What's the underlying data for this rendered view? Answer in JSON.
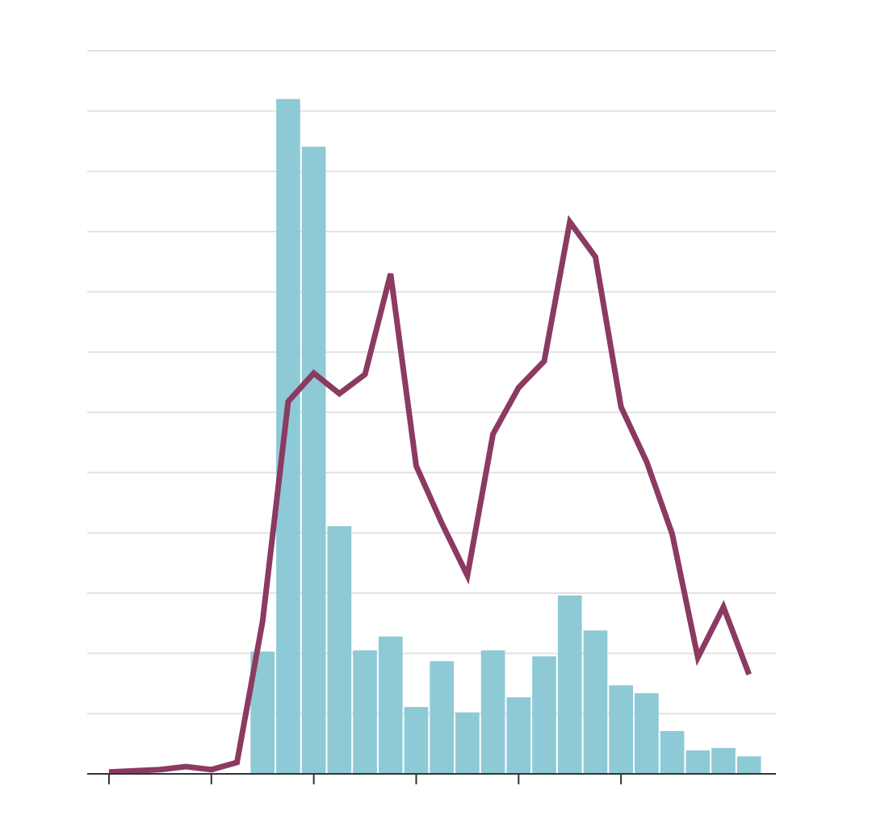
{
  "chart_data": {
    "type": "combo",
    "x": [
      0,
      1,
      2,
      3,
      4,
      5,
      6,
      7,
      8,
      9,
      10,
      11,
      12,
      13,
      14,
      15,
      16,
      17,
      18,
      19,
      20,
      21,
      22,
      23,
      24,
      25
    ],
    "series": [
      {
        "type": "bar",
        "color": "#8ecad6",
        "values": [
          0,
          0,
          0,
          0,
          0,
          0,
          2.03,
          11.2,
          10.41,
          4.11,
          2.05,
          2.28,
          1.11,
          1.87,
          1.02,
          2.05,
          1.27,
          1.95,
          2.96,
          2.38,
          1.47,
          1.34,
          0.71,
          0.39,
          0.43,
          0.29
        ]
      },
      {
        "type": "line",
        "color": "#8b3a62",
        "values": [
          0.03,
          0.05,
          0.07,
          0.12,
          0.07,
          0.19,
          2.53,
          6.18,
          6.65,
          6.31,
          6.63,
          8.3,
          5.11,
          4.16,
          3.29,
          5.64,
          6.41,
          6.85,
          9.16,
          8.58,
          6.09,
          5.18,
          3.98,
          1.93,
          2.77,
          1.65
        ]
      }
    ],
    "xlim": [
      -0.85,
      26.05
    ],
    "xticks": [
      0,
      4,
      8,
      12,
      16,
      20
    ],
    "ylim": [
      0,
      12
    ],
    "yticks": [
      0,
      1,
      2,
      3,
      4,
      5,
      6,
      7,
      8,
      9,
      10,
      11,
      12
    ],
    "grid": true
  }
}
